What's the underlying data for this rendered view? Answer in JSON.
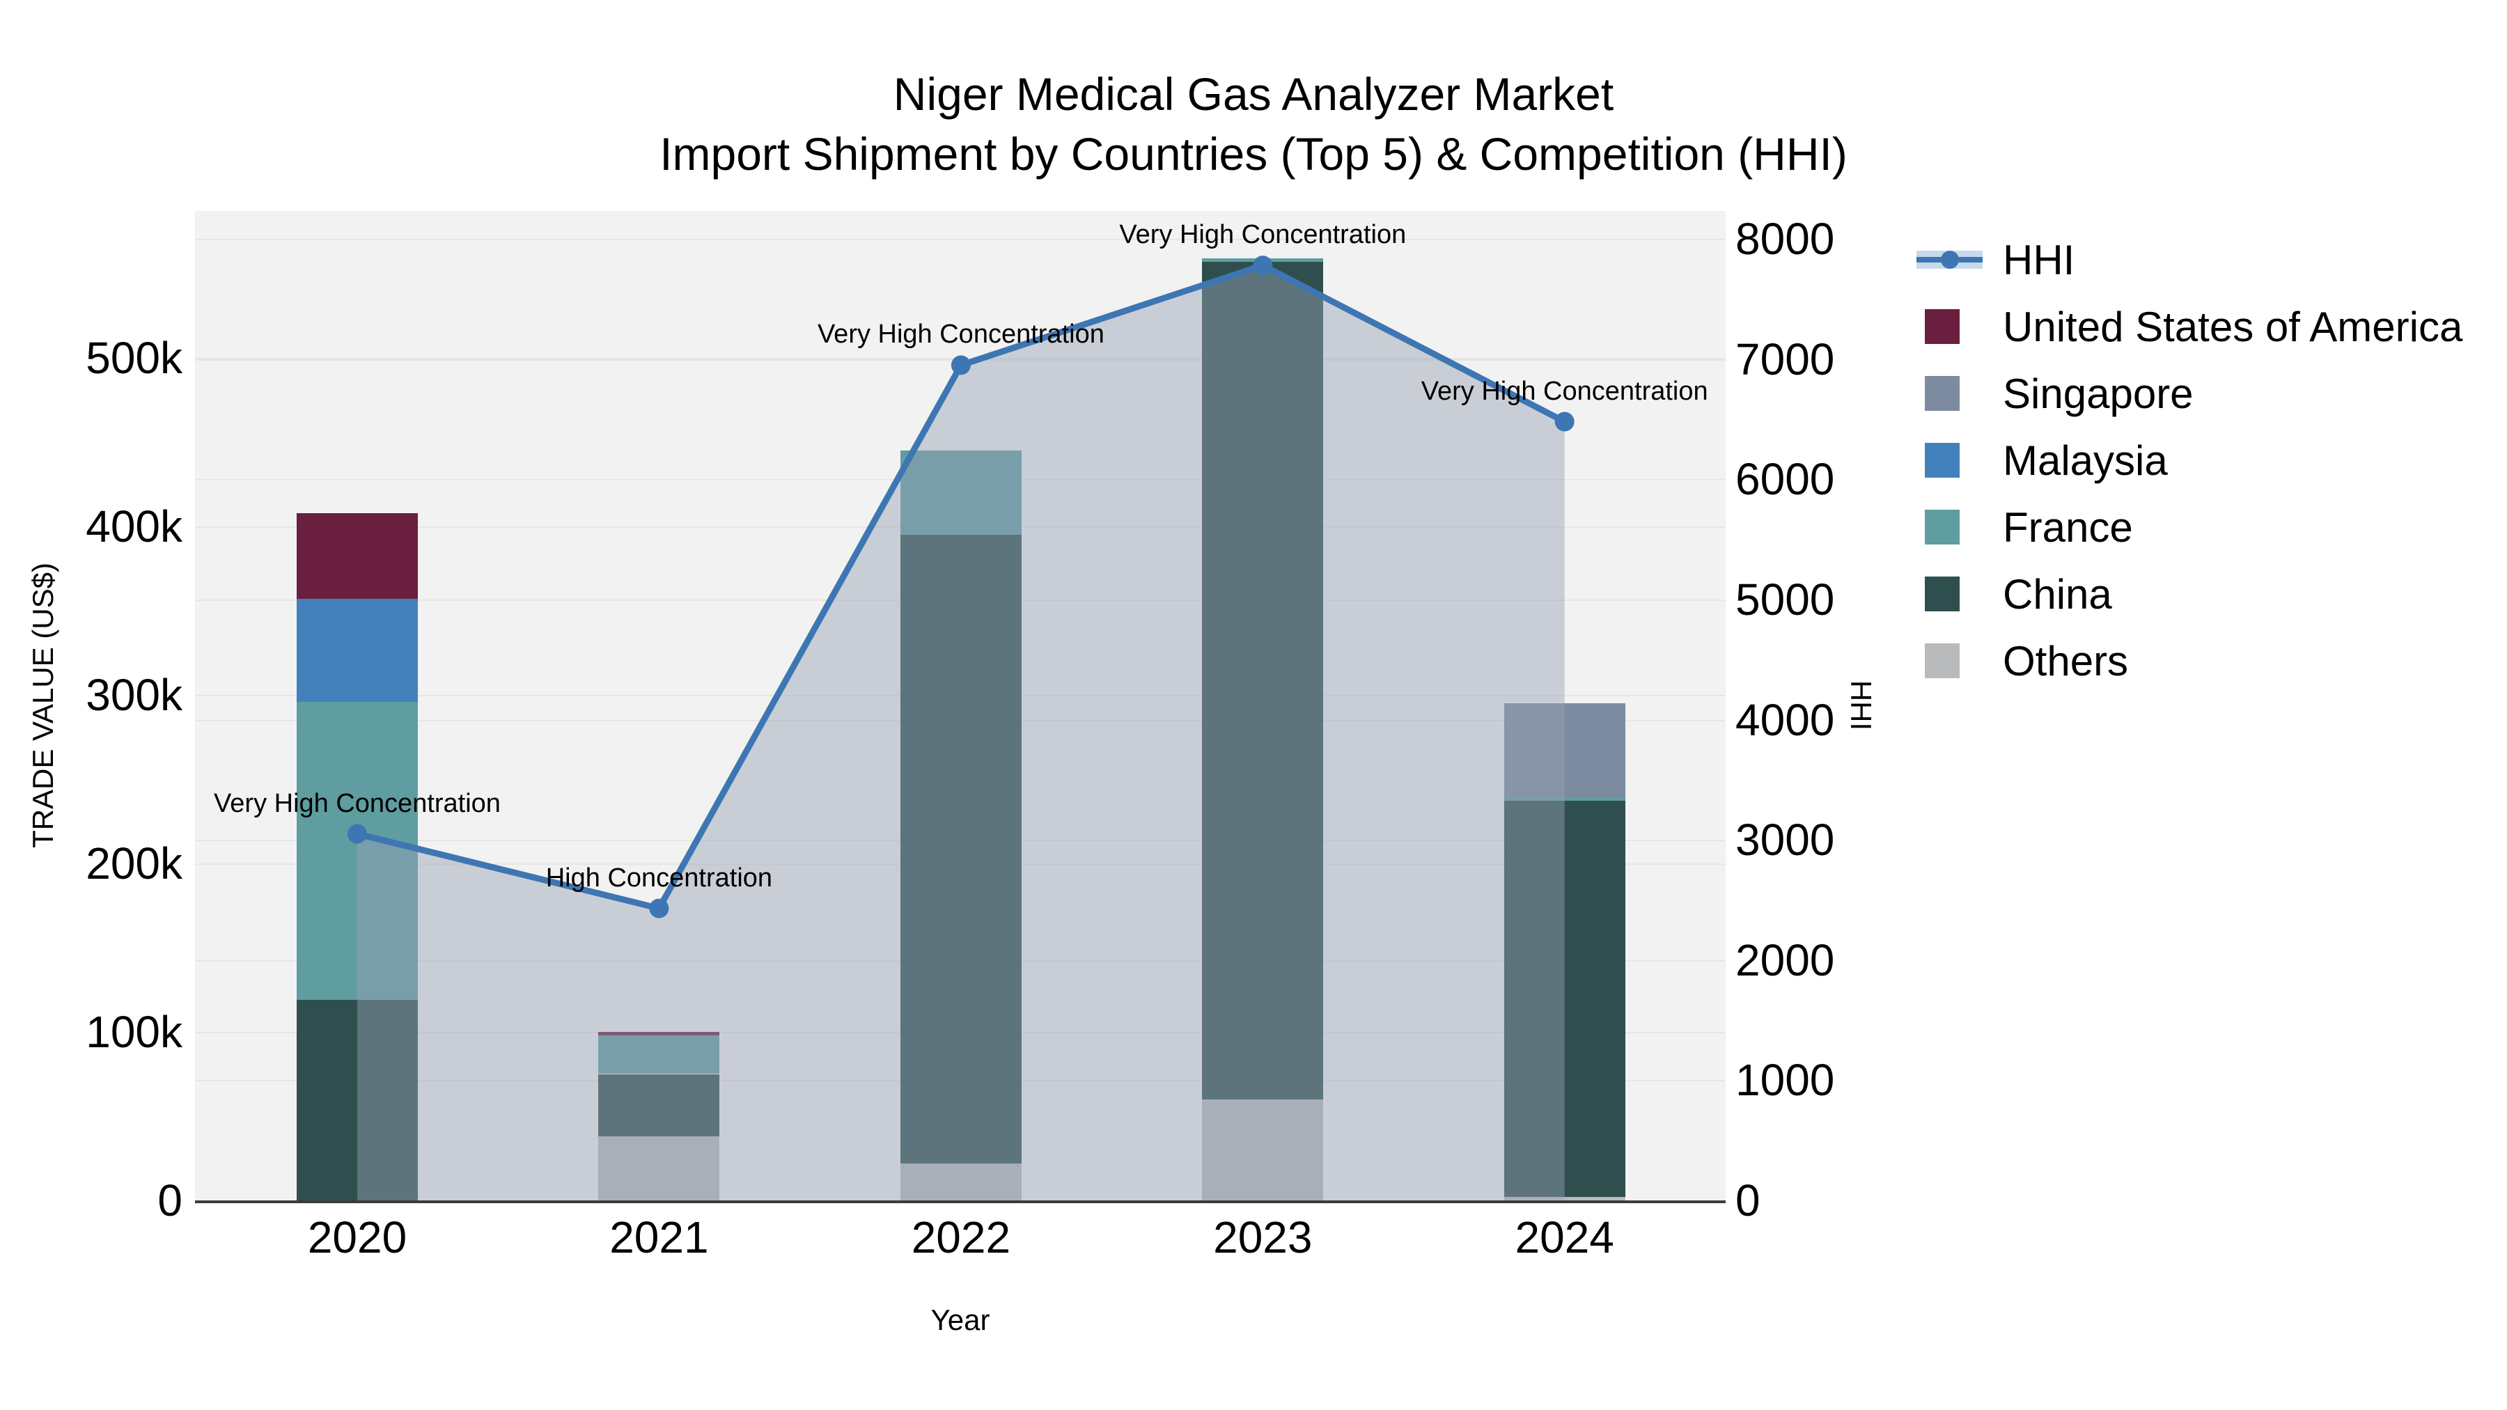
{
  "title": {
    "line1": "Niger Medical Gas Analyzer Market",
    "line2": "Import Shipment by Countries (Top 5) & Competition (HHI)"
  },
  "axes": {
    "x": {
      "title": "Year",
      "tick_labels": [
        "2020",
        "2021",
        "2022",
        "2023",
        "2024"
      ]
    },
    "y_left": {
      "title": "TRADE VALUE (US$)",
      "tick_labels": [
        "0",
        "100k",
        "200k",
        "300k",
        "400k",
        "500k"
      ],
      "range": [
        0,
        587000
      ]
    },
    "y_right": {
      "title": "HHI",
      "tick_labels": [
        "0",
        "1000",
        "2000",
        "3000",
        "4000",
        "5000",
        "6000",
        "7000",
        "8000"
      ],
      "range": [
        0,
        8230
      ]
    }
  },
  "legend": {
    "items": [
      {
        "label": "HHI",
        "type": "line",
        "color": "#3d76b3",
        "band_color": "#c9d9ec"
      },
      {
        "label": "United States of America",
        "type": "square",
        "color": "#6b1f3f"
      },
      {
        "label": "Singapore",
        "type": "square",
        "color": "#7c8ba0"
      },
      {
        "label": "Malaysia",
        "type": "square",
        "color": "#4381bd"
      },
      {
        "label": "France",
        "type": "square",
        "color": "#5f9da0"
      },
      {
        "label": "China",
        "type": "square",
        "color": "#2f4f4f"
      },
      {
        "label": "Others",
        "type": "square",
        "color": "#b9babc"
      }
    ]
  },
  "chart_data": {
    "type": "bar",
    "subtype": "stacked-bars-with-line",
    "categories": [
      "2020",
      "2021",
      "2022",
      "2023",
      "2024"
    ],
    "bar_value_unit": "US$",
    "stack_order_bottom_to_top": [
      "Others",
      "China",
      "France",
      "Malaysia",
      "Singapore",
      "United States of America"
    ],
    "series": [
      {
        "name": "Others",
        "color": "#b9babc",
        "values": [
          0,
          38000,
          22000,
          60000,
          2000
        ]
      },
      {
        "name": "China",
        "color": "#2f4f4f",
        "values": [
          119000,
          37000,
          373000,
          497000,
          235000
        ]
      },
      {
        "name": "France",
        "color": "#5f9da0",
        "values": [
          177000,
          23000,
          50000,
          2000,
          2000
        ]
      },
      {
        "name": "Malaysia",
        "color": "#4381bd",
        "values": [
          61000,
          0,
          0,
          0,
          0
        ]
      },
      {
        "name": "Singapore",
        "color": "#7c8ba0",
        "values": [
          0,
          0,
          0,
          0,
          56000
        ]
      },
      {
        "name": "United States of America",
        "color": "#6b1f3f",
        "values": [
          51000,
          2000,
          0,
          0,
          0
        ]
      }
    ],
    "line_series": {
      "name": "HHI",
      "axis": "right",
      "color": "#3d76b3",
      "area_fill_color": "rgba(151,162,180,0.45)",
      "values": [
        3050,
        2430,
        6950,
        7780,
        6480
      ],
      "annotations": [
        "Very High Concentration",
        "High Concentration",
        "Very High Concentration",
        "Very High Concentration",
        "Very High Concentration"
      ]
    },
    "xlabel": "Year",
    "ylabel_left": "TRADE VALUE (US$)",
    "ylabel_right": "HHI",
    "grid": true,
    "legend_position": "right",
    "plot_background": "#f2f2f2"
  },
  "colors": {
    "page_bg": "#ffffff",
    "plot_bg": "#f2f2f2",
    "gridline": "#e6e6e6",
    "axis_line": "#3b3b3b",
    "text": "#000000"
  }
}
